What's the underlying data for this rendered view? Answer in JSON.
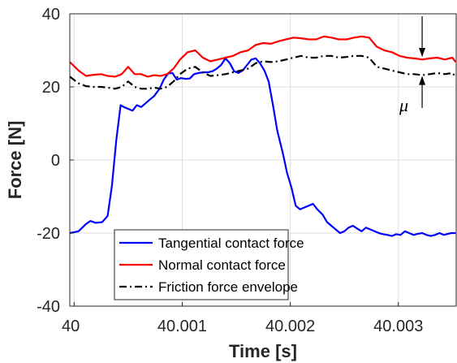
{
  "chart_data": {
    "type": "line",
    "xlabel": "Time [s]",
    "ylabel": "Force [N]",
    "xlim": [
      39.99996,
      40.003535
    ],
    "ylim": [
      -40,
      40
    ],
    "grid": true,
    "x_ticks": [
      {
        "value": 40.0,
        "label": "40"
      },
      {
        "value": 40.001,
        "label": "40.001"
      },
      {
        "value": 40.002,
        "label": "40.002"
      },
      {
        "value": 40.003,
        "label": "40.003"
      }
    ],
    "y_ticks": [
      {
        "value": 40,
        "label": "40"
      },
      {
        "value": 20,
        "label": "20"
      },
      {
        "value": 0,
        "label": "0"
      },
      {
        "value": -20,
        "label": "-20"
      },
      {
        "value": -40,
        "label": "-40"
      }
    ],
    "legend_position": "bottom-left",
    "annotation": {
      "label": "μ",
      "x": 40.00322,
      "y_top": 28.0,
      "y_bottom": 23.2
    },
    "series": [
      {
        "name": "Tangential contact force",
        "color": "#0000ff",
        "line_style": "solid",
        "x": [
          39.99996,
          40.00004,
          40.00011,
          40.00015,
          40.0002,
          40.00026,
          40.00031,
          40.00035,
          40.00039,
          40.00043,
          40.00046,
          40.0005,
          40.00054,
          40.00058,
          40.00062,
          40.00066,
          40.0007,
          40.00074,
          40.00079,
          40.00083,
          40.00087,
          40.00091,
          40.00095,
          40.00099,
          40.00103,
          40.00107,
          40.00111,
          40.00115,
          40.0012,
          40.00124,
          40.00128,
          40.00132,
          40.00136,
          40.0014,
          40.00144,
          40.00148,
          40.00152,
          40.00156,
          40.0016,
          40.00164,
          40.00168,
          40.00172,
          40.00176,
          40.0018,
          40.00184,
          40.00188,
          40.00193,
          40.00197,
          40.00201,
          40.00205,
          40.00209,
          40.00213,
          40.00217,
          40.00221,
          40.00225,
          40.0023,
          40.00234,
          40.00238,
          40.00242,
          40.00246,
          40.0025,
          40.00254,
          40.00258,
          40.00262,
          40.00266,
          40.0027,
          40.00274,
          40.00278,
          40.00282,
          40.00286,
          40.0029,
          40.00294,
          40.00298,
          40.00302,
          40.00306,
          40.0031,
          40.00314,
          40.00318,
          40.00322,
          40.00326,
          40.0033,
          40.00334,
          40.00338,
          40.00342,
          40.00346,
          40.00349,
          40.00353
        ],
        "y": [
          -20.0,
          -19.5,
          -17.5,
          -16.7,
          -17.2,
          -17.0,
          -15.3,
          -7.0,
          5.5,
          15.0,
          14.5,
          14.0,
          13.5,
          15.0,
          14.5,
          15.5,
          16.5,
          17.5,
          19.5,
          22.0,
          23.7,
          23.8,
          22.0,
          22.4,
          22.2,
          22.3,
          23.5,
          23.8,
          24.0,
          24.0,
          24.3,
          25.0,
          26.0,
          27.8,
          26.5,
          24.3,
          23.8,
          24.5,
          26.0,
          27.5,
          27.8,
          26.5,
          24.5,
          21.5,
          15.0,
          8.0,
          2.0,
          -3.5,
          -7.5,
          -12.5,
          -13.5,
          -13.0,
          -12.5,
          -12.0,
          -13.5,
          -15.0,
          -17.0,
          -18.0,
          -19.0,
          -20.0,
          -19.5,
          -18.5,
          -18.0,
          -18.8,
          -19.5,
          -18.5,
          -19.0,
          -19.5,
          -20.0,
          -20.3,
          -20.5,
          -20.8,
          -20.3,
          -20.5,
          -19.5,
          -20.0,
          -20.5,
          -20.2,
          -20.0,
          -20.5,
          -20.8,
          -20.5,
          -20.0,
          -20.5,
          -20.2,
          -20.0,
          -20.0
        ]
      },
      {
        "name": "Normal contact force",
        "color": "#ff0000",
        "line_style": "solid",
        "x": [
          39.99996,
          40.00004,
          40.00011,
          40.00018,
          40.00025,
          40.00031,
          40.00038,
          40.00044,
          40.0005,
          40.00056,
          40.00062,
          40.00068,
          40.00074,
          40.0008,
          40.00086,
          40.00092,
          40.00098,
          40.00105,
          40.00112,
          40.00119,
          40.00126,
          40.00133,
          40.0014,
          40.00147,
          40.00154,
          40.00161,
          40.00168,
          40.00175,
          40.00182,
          40.00189,
          40.00196,
          40.00203,
          40.0021,
          40.00217,
          40.00224,
          40.00231,
          40.00238,
          40.00245,
          40.00252,
          40.00259,
          40.00266,
          40.00273,
          40.0028,
          40.00287,
          40.00294,
          40.00301,
          40.00308,
          40.00315,
          40.00322,
          40.00329,
          40.00336,
          40.00343,
          40.0035,
          40.00353
        ],
        "y": [
          26.8,
          24.5,
          23.0,
          23.3,
          23.5,
          23.0,
          22.8,
          23.5,
          25.5,
          23.5,
          23.5,
          22.8,
          23.2,
          23.0,
          23.5,
          25.0,
          27.5,
          29.5,
          30.0,
          28.0,
          27.0,
          27.5,
          28.0,
          28.5,
          29.5,
          30.0,
          31.5,
          32.0,
          31.8,
          32.5,
          33.0,
          33.5,
          33.3,
          33.0,
          33.0,
          33.8,
          33.5,
          33.0,
          33.0,
          33.5,
          33.8,
          33.5,
          31.0,
          30.0,
          29.5,
          28.5,
          28.0,
          27.8,
          27.5,
          27.8,
          28.0,
          27.5,
          28.0,
          26.8
        ]
      },
      {
        "name": "Friction force envelope",
        "color": "#000000",
        "line_style": "dashdot",
        "x": [
          39.99996,
          40.00004,
          40.00011,
          40.00018,
          40.00025,
          40.00031,
          40.00038,
          40.00044,
          40.0005,
          40.00056,
          40.00062,
          40.00068,
          40.00074,
          40.0008,
          40.00086,
          40.00092,
          40.00098,
          40.00105,
          40.00112,
          40.00119,
          40.00126,
          40.00133,
          40.0014,
          40.00147,
          40.00154,
          40.00161,
          40.00168,
          40.00175,
          40.00182,
          40.00189,
          40.00196,
          40.00203,
          40.0021,
          40.00217,
          40.00224,
          40.00231,
          40.00238,
          40.00245,
          40.00252,
          40.00259,
          40.00266,
          40.00273,
          40.0028,
          40.00287,
          40.00294,
          40.00301,
          40.00308,
          40.00315,
          40.00322,
          40.00329,
          40.00336,
          40.00343,
          40.0035,
          40.00353
        ],
        "y": [
          22.8,
          21.0,
          20.2,
          20.0,
          20.0,
          19.8,
          19.5,
          20.0,
          21.5,
          20.0,
          19.5,
          19.5,
          19.8,
          19.5,
          20.0,
          21.5,
          23.5,
          25.0,
          25.5,
          24.0,
          23.0,
          23.2,
          23.5,
          24.0,
          24.5,
          25.0,
          26.5,
          27.0,
          26.8,
          27.0,
          27.5,
          28.0,
          28.5,
          28.0,
          28.0,
          28.5,
          28.5,
          28.0,
          28.2,
          28.5,
          28.5,
          28.0,
          25.5,
          25.0,
          24.5,
          24.0,
          23.5,
          23.5,
          23.2,
          23.5,
          23.8,
          23.5,
          23.8,
          22.8
        ]
      }
    ]
  }
}
